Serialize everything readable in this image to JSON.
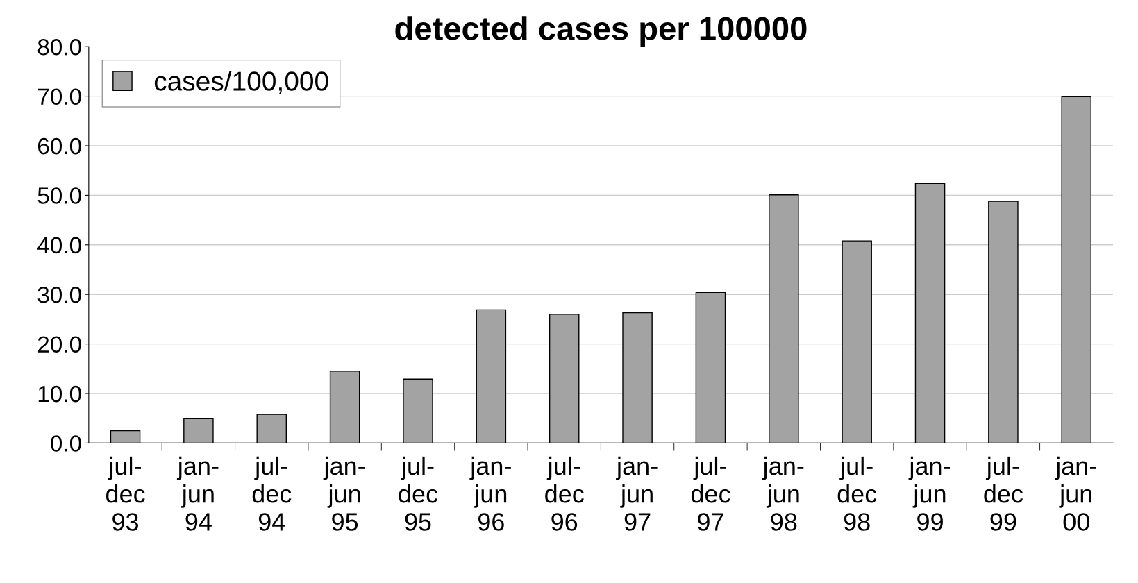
{
  "chart_data": {
    "type": "bar",
    "title": "detected cases per 100000",
    "categories": [
      "jul-\ndec\n93",
      "jan-\njun\n94",
      "jul-\ndec\n94",
      "jan-\njun\n95",
      "jul-\ndec\n95",
      "jan-\njun\n96",
      "jul-\ndec\n96",
      "jan-\njun\n97",
      "jul-\ndec\n97",
      "jan-\njun\n98",
      "jul-\ndec\n98",
      "jan-\njun\n99",
      "jul-\ndec\n99",
      "jan-\njun\n00"
    ],
    "series": [
      {
        "name": "cases/100,000",
        "color": "#a3a3a3",
        "values": [
          2.5,
          5.0,
          5.8,
          14.5,
          12.9,
          26.9,
          26.0,
          26.3,
          30.4,
          50.1,
          40.8,
          52.4,
          48.8,
          69.9
        ]
      }
    ],
    "ylim": [
      0,
      80
    ],
    "yticks": [
      {
        "value": 0,
        "label": "0.0"
      },
      {
        "value": 10,
        "label": "10.0"
      },
      {
        "value": 20,
        "label": "20.0"
      },
      {
        "value": 30,
        "label": "30.0"
      },
      {
        "value": 40,
        "label": "40.0"
      },
      {
        "value": 50,
        "label": "50.0"
      },
      {
        "value": 60,
        "label": "60.0"
      },
      {
        "value": 70,
        "label": "70.0"
      },
      {
        "value": 80,
        "label": "80.0"
      }
    ],
    "grid": "y",
    "legend": "top left"
  }
}
